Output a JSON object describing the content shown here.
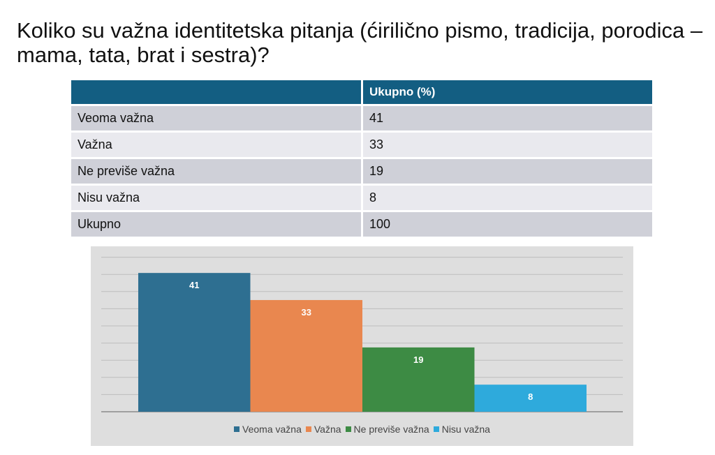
{
  "title": "Koliko su važna identitetska pitanja (ćirilično pismo, tradicija, porodica – mama, tata, brat i sestra)?",
  "table": {
    "headers": [
      "",
      "Ukupno (%)"
    ],
    "rows": [
      {
        "label": "Veoma važna",
        "value": "41"
      },
      {
        "label": "Važna",
        "value": "33"
      },
      {
        "label": "Ne previše važna",
        "value": "19"
      },
      {
        "label": "Nisu važna",
        "value": "8"
      },
      {
        "label": "Ukupno",
        "value": "100"
      }
    ]
  },
  "chart_data": {
    "type": "bar",
    "categories": [
      "Veoma važna",
      "Važna",
      "Ne previše važna",
      "Nisu važna"
    ],
    "values": [
      41,
      33,
      19,
      8
    ],
    "data_labels": [
      "41",
      "33",
      "19",
      "8"
    ],
    "colors": [
      "#2e6f91",
      "#e9874f",
      "#3d8b44",
      "#2eaadc"
    ],
    "legend_position": "bottom",
    "grid": true,
    "ylim": [
      0,
      45
    ],
    "background": "#dedede",
    "label_color": "#ffffff"
  }
}
